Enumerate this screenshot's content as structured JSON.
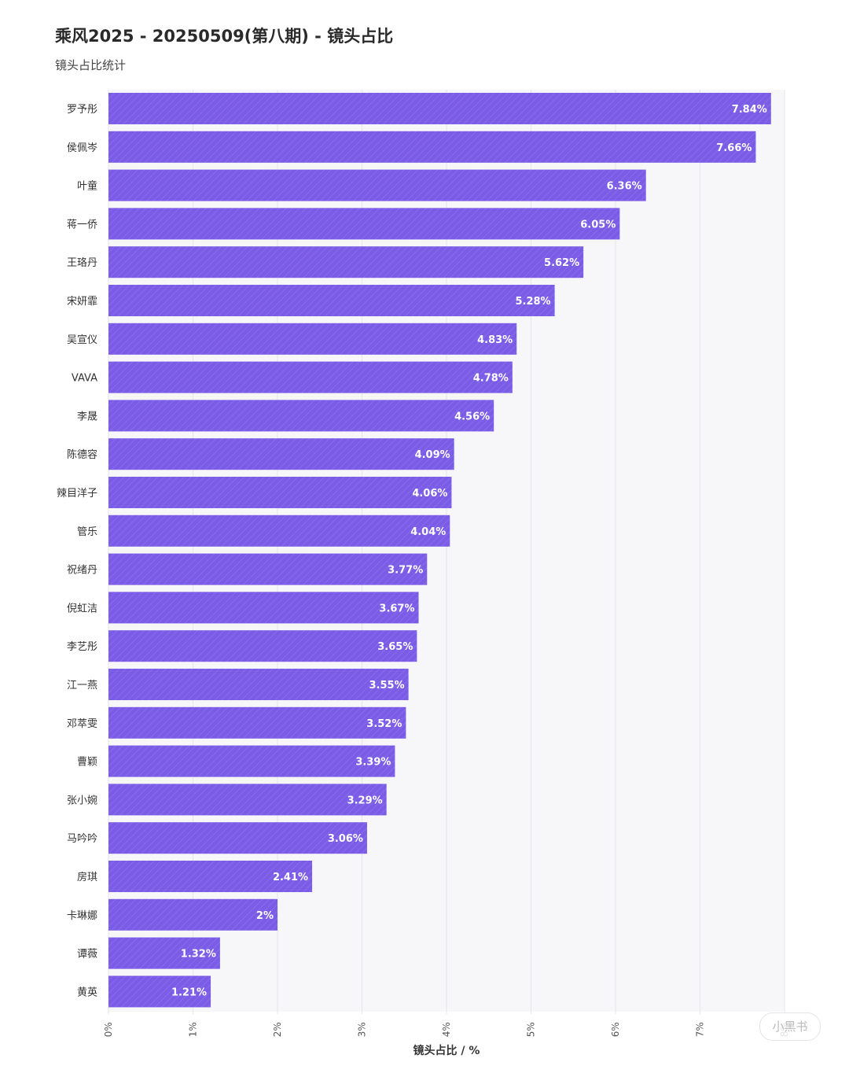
{
  "header": {
    "title": "乘风2025 - 20250509(第八期) - 镜头占比",
    "subtitle": "镜头占比统计"
  },
  "chart_data": {
    "type": "bar",
    "orientation": "horizontal",
    "categories": [
      "罗予彤",
      "侯佩岑",
      "叶童",
      "蒋一侨",
      "王珞丹",
      "宋妍霏",
      "吴宣仪",
      "VAVA",
      "李晟",
      "陈德容",
      "辣目洋子",
      "管乐",
      "祝绪丹",
      "倪虹洁",
      "李艺彤",
      "江一燕",
      "邓萃雯",
      "曹颖",
      "张小婉",
      "马吟吟",
      "房琪",
      "卡琳娜",
      "谭薇",
      "黄英"
    ],
    "values": [
      7.84,
      7.66,
      6.36,
      6.05,
      5.62,
      5.28,
      4.83,
      4.78,
      4.56,
      4.09,
      4.06,
      4.04,
      3.77,
      3.67,
      3.65,
      3.55,
      3.52,
      3.39,
      3.29,
      3.06,
      2.41,
      2,
      1.32,
      1.21
    ],
    "value_labels": [
      "7.84%",
      "7.66%",
      "6.36%",
      "6.05%",
      "5.62%",
      "5.28%",
      "4.83%",
      "4.78%",
      "4.56%",
      "4.09%",
      "4.06%",
      "4.04%",
      "3.77%",
      "3.67%",
      "3.65%",
      "3.55%",
      "3.52%",
      "3.39%",
      "3.29%",
      "3.06%",
      "2.41%",
      "2%",
      "1.32%",
      "1.21%"
    ],
    "xlim": [
      0,
      8
    ],
    "xticks": [
      "0%",
      "1%",
      "2%",
      "3%",
      "4%",
      "5%",
      "6%",
      "7%",
      "8%"
    ],
    "xlabel": "镜头占比 / %",
    "grid": true,
    "bar_color": "#7b5ce6"
  },
  "watermark": {
    "text": "小黑书"
  }
}
